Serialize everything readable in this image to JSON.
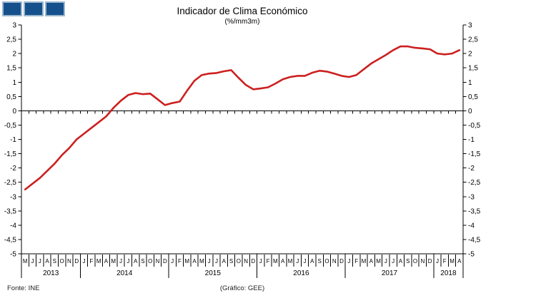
{
  "logo": {
    "square_count": 3,
    "fill_color": "#14518c",
    "border_color": "#9cb6ce"
  },
  "title": "Indicador de Clima Económico",
  "subtitle": "(%/mm3m)",
  "footer": {
    "source": "Fonte: INE",
    "credit": "(Gráfico:  GEE)"
  },
  "chart_data": {
    "type": "line",
    "title": "Indicador de Clima Económico",
    "subtitle": "(%/mm3m)",
    "line_color": "#cc2020",
    "axis_color": "#000000",
    "grid": false,
    "ylim": [
      -5,
      3
    ],
    "ytick_step": 0.5,
    "ytick_labels": [
      "3",
      "2,5",
      "2",
      "1,5",
      "1",
      "0,5",
      "0",
      "-0,5",
      "-1",
      "-1,5",
      "-2",
      "-2,5",
      "-3",
      "-3,5",
      "-4",
      "-4,5",
      "-5"
    ],
    "ytick_values": [
      3,
      2.5,
      2,
      1.5,
      1,
      0.5,
      0,
      -0.5,
      -1,
      -1.5,
      -2,
      -2.5,
      -3,
      -3.5,
      -4,
      -4.5,
      -5
    ],
    "year_groups": [
      {
        "year": "2013",
        "months": [
          "M",
          "J",
          "J",
          "A",
          "S",
          "O",
          "N",
          "D"
        ]
      },
      {
        "year": "2014",
        "months": [
          "J",
          "F",
          "M",
          "A",
          "M",
          "J",
          "J",
          "A",
          "S",
          "O",
          "N",
          "D"
        ]
      },
      {
        "year": "2015",
        "months": [
          "J",
          "F",
          "M",
          "A",
          "M",
          "J",
          "J",
          "A",
          "S",
          "O",
          "N",
          "D"
        ]
      },
      {
        "year": "2016",
        "months": [
          "J",
          "F",
          "M",
          "A",
          "M",
          "J",
          "J",
          "A",
          "S",
          "O",
          "N",
          "D"
        ]
      },
      {
        "year": "2017",
        "months": [
          "J",
          "F",
          "M",
          "A",
          "M",
          "J",
          "J",
          "A",
          "S",
          "O",
          "N",
          "D"
        ]
      },
      {
        "year": "2018",
        "months": [
          "J",
          "F",
          "M",
          "A"
        ]
      }
    ],
    "values": [
      -2.75,
      -2.55,
      -2.35,
      -2.1,
      -1.85,
      -1.55,
      -1.3,
      -1.0,
      -0.8,
      -0.6,
      -0.4,
      -0.2,
      0.1,
      0.35,
      0.55,
      0.62,
      0.58,
      0.6,
      0.4,
      0.2,
      0.27,
      0.32,
      0.7,
      1.05,
      1.25,
      1.3,
      1.32,
      1.38,
      1.42,
      1.15,
      0.9,
      0.75,
      0.78,
      0.82,
      0.95,
      1.1,
      1.18,
      1.22,
      1.22,
      1.33,
      1.4,
      1.37,
      1.3,
      1.22,
      1.18,
      1.25,
      1.45,
      1.65,
      1.8,
      1.95,
      2.12,
      2.25,
      2.25,
      2.2,
      2.18,
      2.15,
      2.0,
      1.97,
      2.0,
      2.12
    ]
  }
}
